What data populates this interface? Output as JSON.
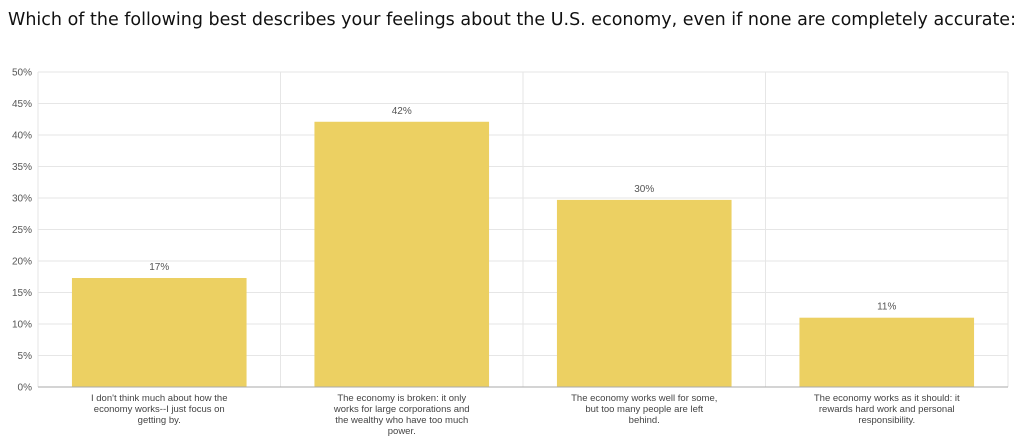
{
  "chart_data": {
    "type": "bar",
    "title": "Which of the following best describes your feelings about the U.S. economy, even if none are completely accurate:",
    "categories": [
      "I don't think much about how the economy works--I just focus on getting by.",
      "The economy is broken: it only works for large corporations and the wealthy who have too much power.",
      "The economy works well for some, but too many people are left behind.",
      "The economy works as it should: it rewards hard work and personal responsibility."
    ],
    "category_lines": [
      [
        "I don't think much about how the",
        "economy works--I just focus on",
        "getting by."
      ],
      [
        "The economy is broken: it only",
        "works for large corporations and",
        "the wealthy who have too much",
        "power."
      ],
      [
        "The economy works well for some,",
        "but too many people are left",
        "behind."
      ],
      [
        "The economy works as it should: it",
        "rewards hard work and personal",
        "responsibility."
      ]
    ],
    "values": [
      17.3,
      42.1,
      29.7,
      11.0
    ],
    "data_labels": [
      "17%",
      "42%",
      "30%",
      "11%"
    ],
    "ylim": [
      0,
      50
    ],
    "yticks": [
      "0%",
      "5%",
      "10%",
      "15%",
      "20%",
      "25%",
      "30%",
      "35%",
      "40%",
      "45%",
      "50%"
    ],
    "grid": true,
    "bar_color": "#ecd062"
  }
}
